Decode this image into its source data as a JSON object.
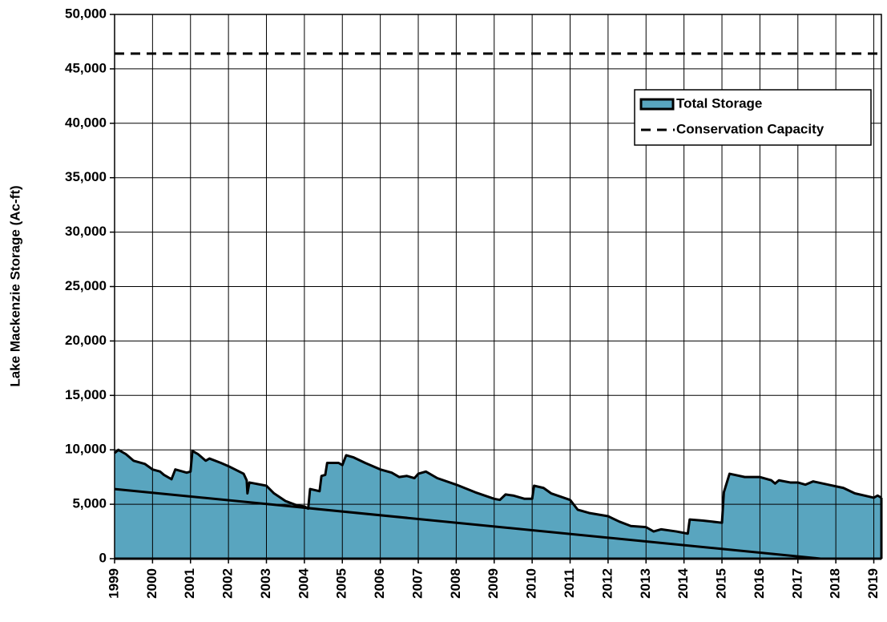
{
  "chart_data": {
    "type": "area",
    "y_label": "Lake Mackenzie Storage (Ac-ft)",
    "xlim": [
      1999,
      2019.2
    ],
    "xticks": [
      1999,
      2000,
      2001,
      2002,
      2003,
      2004,
      2005,
      2006,
      2007,
      2008,
      2009,
      2010,
      2011,
      2012,
      2013,
      2014,
      2015,
      2016,
      2017,
      2018,
      2019
    ],
    "ylim": [
      0,
      50000
    ],
    "yticks": [
      0,
      {
        "value": 5000,
        "label": "5,000"
      },
      {
        "value": 10000,
        "label": "10,000"
      },
      {
        "value": 15000,
        "label": "15,000"
      },
      {
        "value": 20000,
        "label": "20,000"
      },
      {
        "value": 25000,
        "label": "25,000"
      },
      {
        "value": 30000,
        "label": "30,000"
      },
      {
        "value": 35000,
        "label": "35,000"
      },
      {
        "value": 40000,
        "label": "40,000"
      },
      {
        "value": 45000,
        "label": "45,000"
      },
      {
        "value": 50000,
        "label": "50,000"
      }
    ],
    "grid": true,
    "legend": "upper right",
    "series": [
      {
        "name": "Total Storage",
        "kind": "area",
        "color": "#59a5bf",
        "x": [
          1999.0,
          1999.1,
          1999.3,
          1999.5,
          1999.8,
          2000.0,
          2000.2,
          2000.3,
          2000.5,
          2000.6,
          2000.9,
          2001.0,
          2001.05,
          2001.2,
          2001.4,
          2001.5,
          2001.8,
          2002.0,
          2002.4,
          2002.48,
          2002.5,
          2002.55,
          2003.0,
          2003.2,
          2003.5,
          2003.8,
          2004.0,
          2004.1,
          2004.15,
          2004.4,
          2004.45,
          2004.55,
          2004.6,
          2004.9,
          2005.0,
          2005.1,
          2005.3,
          2005.6,
          2006.0,
          2006.3,
          2006.5,
          2006.7,
          2006.9,
          2007.0,
          2007.2,
          2007.5,
          2008.0,
          2008.5,
          2009.0,
          2009.15,
          2009.3,
          2009.5,
          2009.8,
          2010.0,
          2010.05,
          2010.3,
          2010.5,
          2011.0,
          2011.2,
          2011.5,
          2012.0,
          2012.3,
          2012.6,
          2013.0,
          2013.2,
          2013.4,
          2013.8,
          2014.1,
          2014.15,
          2014.5,
          2015.0,
          2015.05,
          2015.2,
          2015.6,
          2016.0,
          2016.3,
          2016.4,
          2016.5,
          2016.8,
          2017.0,
          2017.2,
          2017.4,
          2017.8,
          2018.2,
          2018.5,
          2019.0,
          2019.1,
          2019.2
        ],
        "values": [
          9700,
          10000,
          9600,
          9000,
          8700,
          8200,
          8000,
          7700,
          7300,
          8200,
          7900,
          8000,
          9900,
          9600,
          9000,
          9200,
          8800,
          8500,
          7800,
          7200,
          6000,
          7000,
          6700,
          6000,
          5300,
          4900,
          4800,
          4600,
          6400,
          6200,
          7600,
          7700,
          8800,
          8800,
          8600,
          9500,
          9300,
          8800,
          8200,
          7900,
          7500,
          7600,
          7400,
          7800,
          8000,
          7400,
          6800,
          6100,
          5500,
          5400,
          5900,
          5800,
          5500,
          5500,
          6700,
          6500,
          6000,
          5400,
          4500,
          4200,
          3900,
          3400,
          3000,
          2900,
          2500,
          2700,
          2500,
          2300,
          3600,
          3500,
          3300,
          6100,
          7800,
          7500,
          7500,
          7200,
          6900,
          7200,
          7000,
          7000,
          6800,
          7100,
          6800,
          6500,
          6000,
          5600,
          5800,
          5600
        ]
      },
      {
        "name": "Conservation Capacity",
        "kind": "dashed",
        "color": "#000000",
        "x": [
          1999,
          2019.2
        ],
        "values": [
          46400,
          46400
        ]
      },
      {
        "kind": "line",
        "color": "#000000",
        "x": [
          1999,
          2017.6
        ],
        "values": [
          6400,
          0
        ]
      }
    ]
  }
}
